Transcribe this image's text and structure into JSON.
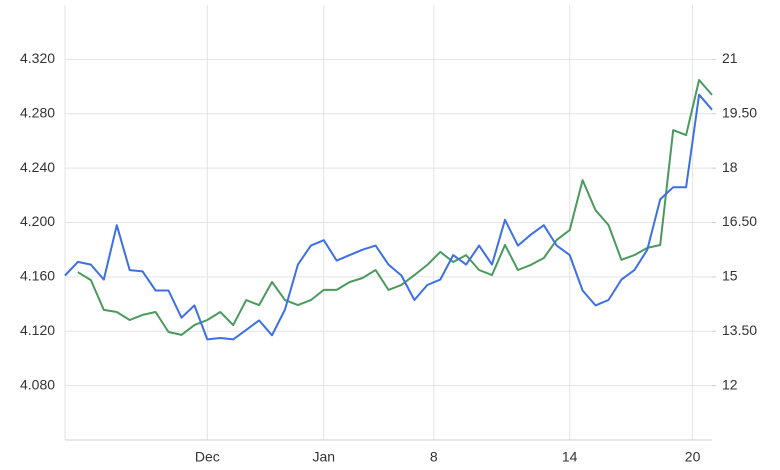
{
  "chart_data": {
    "type": "line",
    "x": [
      0,
      2,
      4,
      6,
      8,
      10,
      12,
      14,
      16,
      18,
      20,
      22,
      24,
      26,
      28,
      30,
      32,
      34,
      36,
      38,
      40,
      42,
      44,
      46,
      48,
      50,
      52,
      54,
      56,
      58,
      60,
      62,
      64,
      66,
      68,
      70,
      72,
      74,
      76,
      78,
      80,
      82,
      84,
      86,
      88,
      90,
      92,
      94,
      96,
      98,
      100
    ],
    "xlim": [
      0,
      100
    ],
    "xticks": [
      {
        "value": 22,
        "label": "Dec"
      },
      {
        "value": 40,
        "label": "Jan"
      },
      {
        "value": 57,
        "label": "8"
      },
      {
        "value": 78,
        "label": "14"
      },
      {
        "value": 97,
        "label": "20"
      }
    ],
    "ylim": [
      4.04,
      4.36
    ],
    "yticks": [
      {
        "value": 4.08,
        "label": "4.080"
      },
      {
        "value": 4.12,
        "label": "4.120"
      },
      {
        "value": 4.16,
        "label": "4.160"
      },
      {
        "value": 4.2,
        "label": "4.200"
      },
      {
        "value": 4.24,
        "label": "4.240"
      },
      {
        "value": 4.28,
        "label": "4.280"
      },
      {
        "value": 4.32,
        "label": "4.320"
      }
    ],
    "y2lim": [
      10.5,
      22.5
    ],
    "y2ticks": [
      12,
      {
        "value": 13.5,
        "label": "13.50"
      },
      15,
      {
        "value": 16.5,
        "label": "16.50"
      },
      18,
      {
        "value": 19.5,
        "label": "19.50"
      },
      21
    ],
    "grid": true,
    "series": [
      {
        "color": "#3d6fe6",
        "values": [
          4.161,
          4.171,
          4.169,
          4.158,
          4.198,
          4.165,
          4.164,
          4.15,
          4.15,
          4.13,
          4.139,
          4.114,
          4.115,
          4.114,
          4.121,
          4.128,
          4.117,
          4.136,
          4.169,
          4.183,
          4.187,
          4.172,
          4.176,
          4.18,
          4.183,
          4.169,
          4.161,
          4.143,
          4.154,
          4.158,
          4.176,
          4.169,
          4.183,
          4.169,
          4.202,
          4.183,
          4.191,
          4.198,
          4.183,
          4.176,
          4.15,
          4.139,
          4.143,
          4.158,
          4.165,
          4.18,
          4.217,
          4.226,
          4.226,
          4.294,
          4.283
        ]
      },
      {
        "color": "#4a9a5e",
        "axis": "y2",
        "values": [
          null,
          15.13,
          14.91,
          14.09,
          14.03,
          13.81,
          13.95,
          14.03,
          13.48,
          13.4,
          13.67,
          13.81,
          14.03,
          13.67,
          14.36,
          14.22,
          14.86,
          14.36,
          14.22,
          14.36,
          14.64,
          14.64,
          14.86,
          14.97,
          15.19,
          14.64,
          14.78,
          15.05,
          15.33,
          15.69,
          15.41,
          15.6,
          15.19,
          15.05,
          15.88,
          15.19,
          15.33,
          15.52,
          16.02,
          16.29,
          17.67,
          16.84,
          16.43,
          15.47,
          15.6,
          15.8,
          15.88,
          19.05,
          18.91,
          20.43,
          20.02
        ]
      }
    ]
  }
}
